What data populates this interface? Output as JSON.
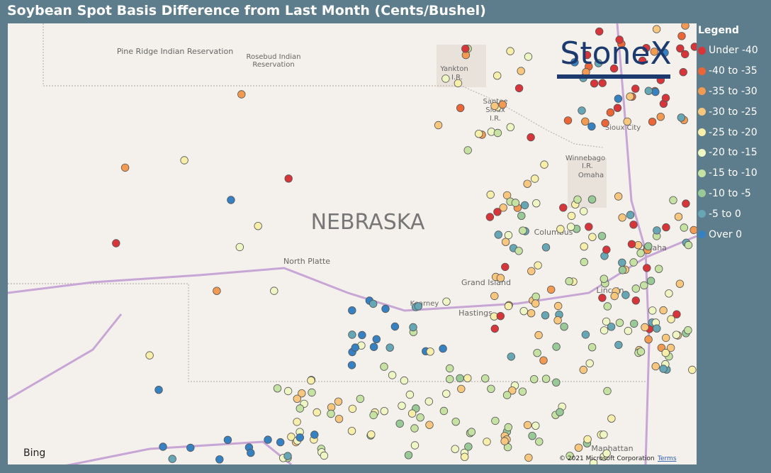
{
  "title": "Soybean Spot Basis Difference from Last Month (Cents/Bushel)",
  "legend": {
    "title": "Legend",
    "items": [
      {
        "label": "Under -40",
        "color": "#d7353a"
      },
      {
        "label": "-40 to -35",
        "color": "#ec6537"
      },
      {
        "label": "-35 to -30",
        "color": "#f29a52"
      },
      {
        "label": "-30 to -25",
        "color": "#f8c77d"
      },
      {
        "label": "-25 to -20",
        "color": "#f7eeaa"
      },
      {
        "label": "-20 to -15",
        "color": "#eef6c3"
      },
      {
        "label": "-15 to -10",
        "color": "#c6e2a2"
      },
      {
        "label": "-10 to -5",
        "color": "#98c996"
      },
      {
        "label": "-5 to 0",
        "color": "#67a6b4"
      },
      {
        "label": "Over 0",
        "color": "#3681c2"
      }
    ]
  },
  "map": {
    "labels": [
      "Pine Ridge Indian Reservation",
      "Rosebud Indian",
      "Reservation",
      "Yankton",
      "I.R.",
      "Santee",
      "Sioux",
      "I.R.",
      "Sioux City",
      "Winnebago",
      "I.R.",
      "Omaha",
      "NEBRASKA",
      "North Platte",
      "Grand Island",
      "Kearney",
      "Hastings",
      "Columbus",
      "Omaha",
      "Lincoln",
      "Manhattan"
    ],
    "logo": "StoneX",
    "bing": "Bing",
    "attribution": "© 2021 Microsoft Corporation",
    "terms": "Terms"
  }
}
